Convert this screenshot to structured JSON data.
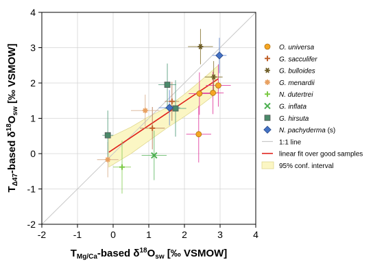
{
  "chart_data": {
    "type": "scatter",
    "xlim": [
      -2,
      4
    ],
    "ylim": [
      -2,
      4
    ],
    "x_ticks": [
      "-2",
      "-1",
      "0",
      "1",
      "2",
      "3",
      "4"
    ],
    "y_ticks": [
      "-2",
      "-1",
      "0",
      "1",
      "2",
      "3",
      "4"
    ],
    "grid": true,
    "legend_position": "right",
    "xlabel": {
      "pre": "T",
      "sub": "Mg/Ca",
      "mid": "-based δ",
      "sup": "18",
      "mid2": "O",
      "sub2": "sw",
      "post": " [‰ VSMOW]"
    },
    "ylabel": {
      "pre": "T",
      "sub": "Δ47",
      "mid": "-based δ",
      "sup": "18",
      "mid2": "O",
      "sub2": "sw",
      "post": " [‰ VSMOW]"
    },
    "one_to_one_line": {
      "name": "1:1 line",
      "color": "#c8c8c8"
    },
    "fit_line": {
      "name": "linear fit over good samples",
      "color": "#e0201b",
      "points": [
        [
          -0.12,
          0.04
        ],
        [
          2.95,
          2.12
        ]
      ]
    },
    "confidence_band": {
      "name": "95% conf. interval",
      "color": "#fbf6c4",
      "edge_color": "#e0d890",
      "upper": [
        [
          -0.12,
          0.45
        ],
        [
          0.5,
          0.75
        ],
        [
          1.0,
          1.05
        ],
        [
          1.5,
          1.3
        ],
        [
          2.0,
          1.68
        ],
        [
          2.5,
          2.1
        ],
        [
          2.95,
          2.5
        ]
      ],
      "lower": [
        [
          2.95,
          1.75
        ],
        [
          2.5,
          1.4
        ],
        [
          2.0,
          1.05
        ],
        [
          1.5,
          0.72
        ],
        [
          1.0,
          0.36
        ],
        [
          0.5,
          0.0
        ],
        [
          -0.12,
          -0.38
        ]
      ]
    },
    "series": [
      {
        "name": "O. universa",
        "marker": "circle",
        "color": "#f5a623",
        "err_color": "#e040a0",
        "points": [
          {
            "x": 2.42,
            "y": 1.7,
            "xerr": 0.3,
            "yerr": 0.6
          },
          {
            "x": 2.8,
            "y": 1.72,
            "xerr": 0.3,
            "yerr": 0.6
          },
          {
            "x": 2.95,
            "y": 1.93,
            "xerr": 0.35,
            "yerr": 0.6
          },
          {
            "x": 2.4,
            "y": 0.55,
            "xerr": 0.35,
            "yerr": 0.8
          }
        ]
      },
      {
        "name": "G. sacculifer",
        "marker": "plus",
        "color": "#c0602a",
        "err_color": "#b87a55",
        "points": [
          {
            "x": 1.65,
            "y": 1.48,
            "xerr": 0.2,
            "yerr": 0.55
          },
          {
            "x": 1.1,
            "y": 0.72,
            "xerr": 0.35,
            "yerr": 0.6
          }
        ]
      },
      {
        "name": "G. bulloides",
        "marker": "star6",
        "color": "#6b5a24",
        "err_color": "#8a7a3a",
        "points": [
          {
            "x": 2.45,
            "y": 3.03,
            "xerr": 0.35,
            "yerr": 0.5
          },
          {
            "x": 2.82,
            "y": 2.17,
            "xerr": 0.25,
            "yerr": 0.45
          }
        ]
      },
      {
        "name": "G. menardii",
        "marker": "star",
        "color": "#e8a060",
        "err_color": "#d8b090",
        "points": [
          {
            "x": 0.9,
            "y": 1.22,
            "xerr": 0.4,
            "yerr": 0.45
          },
          {
            "x": -0.15,
            "y": -0.17,
            "xerr": 0.3,
            "yerr": 0.5
          }
        ]
      },
      {
        "name": "N. dutertrei",
        "marker": "plus",
        "color": "#7ac943",
        "err_color": "#8ed060",
        "points": [
          {
            "x": 0.25,
            "y": -0.38,
            "xerr": 0.25,
            "yerr": 0.75
          }
        ]
      },
      {
        "name": "G. inflata",
        "marker": "x",
        "color": "#4caf50",
        "err_color": "#66bb6a",
        "points": [
          {
            "x": 1.15,
            "y": -0.05,
            "xerr": 0.35,
            "yerr": 0.7
          }
        ]
      },
      {
        "name": "G. hirsuta",
        "marker": "square",
        "color": "#4a8a6a",
        "err_color": "#5aa080",
        "points": [
          {
            "x": -0.15,
            "y": 0.52,
            "xerr": 0.15,
            "yerr": 0.7
          },
          {
            "x": 1.52,
            "y": 1.95,
            "xerr": 0.25,
            "yerr": 0.6
          },
          {
            "x": 1.75,
            "y": 1.28,
            "xerr": 0.3,
            "yerr": 0.8
          }
        ]
      },
      {
        "name": "N. pachyderma",
        "suffix": " (s)",
        "marker": "diamond",
        "color": "#4472c4",
        "err_color": "#6a8fd6",
        "points": [
          {
            "x": 1.58,
            "y": 1.3,
            "xerr": 0.3,
            "yerr": 0.5
          },
          {
            "x": 2.98,
            "y": 2.78,
            "xerr": 0.2,
            "yerr": 0.5
          }
        ]
      }
    ]
  }
}
